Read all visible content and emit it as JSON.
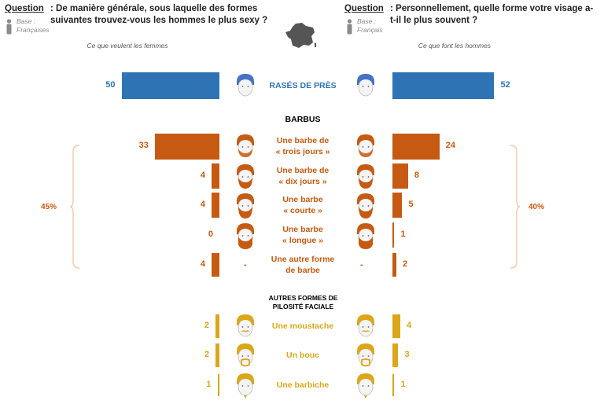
{
  "left": {
    "question_label": "Question",
    "question_text": ": De manière générale, sous laquelle des formes suivantes trouvez-vous les hommes le plus sexy ?",
    "base_label": "Base :",
    "base_value": "Françaises",
    "subtitle": "Ce que veulent les femmes"
  },
  "right": {
    "question_label": "Question",
    "question_text": ": Personnellement, quelle forme votre visage a-t-il le plus souvent ?",
    "base_label": "Base :",
    "base_value": "Français",
    "subtitle": "Ce que font les hommes"
  },
  "sections": {
    "barbus": "BARBUS",
    "autres": "AUTRES FORMES DE PILOSITÉ FACIALE"
  },
  "braces": {
    "left_pct": "45%",
    "right_pct": "40%"
  },
  "colors": {
    "blue": "#2e74b5",
    "orange": "#c65a12",
    "gold": "#dba61a",
    "hair_blue": "#4472c4",
    "skin": "#f2f2f2"
  },
  "chart_data": {
    "type": "bar",
    "categories": [
      "RASÉS DE PRÈS",
      "Une barbe de « trois jours »",
      "Une barbe de « dix jours »",
      "Une barbe « courte »",
      "Une barbe « longue »",
      "Une autre forme de barbe",
      "Une moustache",
      "Un bouc",
      "Une barbiche"
    ],
    "label_lines": [
      [
        "RASÉS DE PRÈS"
      ],
      [
        "Une barbe de",
        "« trois jours »"
      ],
      [
        "Une barbe de",
        "« dix jours »"
      ],
      [
        "Une barbe",
        "« courte »"
      ],
      [
        "Une barbe",
        "« longue »"
      ],
      [
        "Une autre forme",
        "de barbe"
      ],
      [
        "Une moustache"
      ],
      [
        "Un bouc"
      ],
      [
        "Une barbiche"
      ]
    ],
    "groups": [
      "rase",
      "barbus",
      "barbus",
      "barbus",
      "barbus",
      "barbus",
      "autres",
      "autres",
      "autres"
    ],
    "icons": [
      "shaved-face-icon",
      "stubble-beard-icon",
      "ten-day-beard-icon",
      "short-beard-icon",
      "long-beard-icon",
      "dash",
      "mustache-icon",
      "goatee-icon",
      "chin-beard-icon"
    ],
    "series": [
      {
        "values": [
          50,
          33,
          4,
          4,
          0,
          4,
          2,
          2,
          1
        ]
      },
      {
        "values": [
          52,
          24,
          8,
          5,
          1,
          2,
          4,
          3,
          1
        ]
      }
    ],
    "dash_label": "-"
  }
}
